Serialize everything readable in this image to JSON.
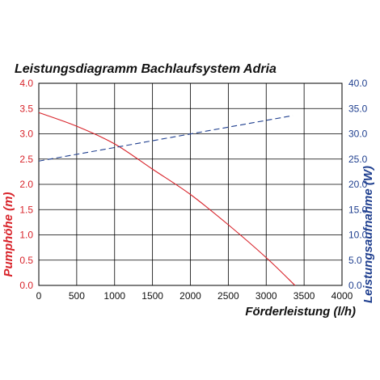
{
  "chart_data": {
    "type": "line",
    "title": "Leistungsdiagramm Bachlaufsystem Adria",
    "xlabel": "Förderleistung (l/h)",
    "ylabel_left": "Pumphöhe (m)",
    "ylabel_right": "Leistungsaufnahme (W)",
    "xlim": [
      0,
      4000
    ],
    "ylim_left": [
      0,
      4.0
    ],
    "ylim_right": [
      0,
      40.0
    ],
    "x_ticks": [
      "0",
      "500",
      "1000",
      "1500",
      "2000",
      "2500",
      "3000",
      "3500",
      "4000"
    ],
    "y_left_ticks": [
      "0.0",
      "0.5",
      "1.0",
      "1.5",
      "2.0",
      "2.5",
      "3.0",
      "3.5",
      "4.0"
    ],
    "y_right_ticks": [
      "0.0",
      "5.0",
      "10.0",
      "15.0",
      "20.0",
      "25.0",
      "30.0",
      "35.0",
      "40.0"
    ],
    "grid": true,
    "series": [
      {
        "axis": "left",
        "style": "solid",
        "color": "#d8232a",
        "x": [
          0,
          500,
          1000,
          1500,
          2000,
          2500,
          3000,
          3380
        ],
        "y": [
          3.42,
          3.15,
          2.8,
          2.3,
          1.8,
          1.2,
          0.55,
          0.0
        ]
      },
      {
        "axis": "right",
        "style": "dashed",
        "color": "#1f3f8f",
        "x": [
          0,
          3350
        ],
        "y": [
          24.6,
          33.6
        ]
      }
    ]
  }
}
